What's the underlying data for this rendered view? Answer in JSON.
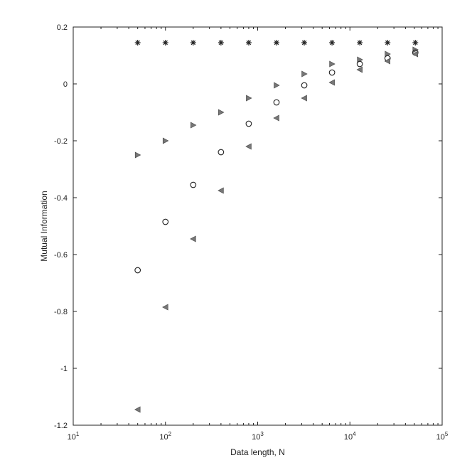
{
  "chart_data": {
    "type": "scatter",
    "xlabel": "Data length, N",
    "ylabel": "Mutual Information",
    "xscale": "log",
    "xlim": [
      10,
      100000
    ],
    "ylim": [
      -1.2,
      0.2
    ],
    "grid": false,
    "legend": "none",
    "x_ticks": [
      10,
      100,
      1000,
      10000,
      100000
    ],
    "x_tick_labels": [
      {
        "base": "10",
        "exp": "1"
      },
      {
        "base": "10",
        "exp": "2"
      },
      {
        "base": "10",
        "exp": "3"
      },
      {
        "base": "10",
        "exp": "4"
      },
      {
        "base": "10",
        "exp": "5"
      }
    ],
    "y_ticks": [
      0.2,
      0,
      -0.2,
      -0.4,
      -0.6,
      -0.8,
      -1,
      -1.2
    ],
    "y_tick_labels": [
      "0.2",
      "0",
      "-0.2",
      "-0.4",
      "-0.6",
      "-0.8",
      "-1",
      "-1.2"
    ],
    "series": [
      {
        "marker": "asterisk",
        "color": "#222222",
        "points": [
          [
            50,
            0.145
          ],
          [
            100,
            0.145
          ],
          [
            200,
            0.145
          ],
          [
            400,
            0.145
          ],
          [
            800,
            0.145
          ],
          [
            1600,
            0.145
          ],
          [
            3200,
            0.145
          ],
          [
            6400,
            0.145
          ],
          [
            12800,
            0.145
          ],
          [
            25600,
            0.145
          ],
          [
            51200,
            0.145
          ]
        ]
      },
      {
        "marker": "triangle-right",
        "color": "#777777",
        "points": [
          [
            50,
            -0.25
          ],
          [
            100,
            -0.2
          ],
          [
            200,
            -0.145
          ],
          [
            400,
            -0.1
          ],
          [
            800,
            -0.05
          ],
          [
            1600,
            -0.005
          ],
          [
            3200,
            0.035
          ],
          [
            6400,
            0.07
          ],
          [
            12800,
            0.085
          ],
          [
            25600,
            0.105
          ],
          [
            51200,
            0.12
          ]
        ]
      },
      {
        "marker": "circle",
        "color": "#222222",
        "points": [
          [
            50,
            -0.655
          ],
          [
            100,
            -0.485
          ],
          [
            200,
            -0.355
          ],
          [
            400,
            -0.24
          ],
          [
            800,
            -0.14
          ],
          [
            1600,
            -0.065
          ],
          [
            3200,
            -0.005
          ],
          [
            6400,
            0.04
          ],
          [
            12800,
            0.07
          ],
          [
            25600,
            0.09
          ],
          [
            51200,
            0.11
          ]
        ]
      },
      {
        "marker": "triangle-left",
        "color": "#777777",
        "points": [
          [
            50,
            -1.145
          ],
          [
            100,
            -0.785
          ],
          [
            200,
            -0.545
          ],
          [
            400,
            -0.375
          ],
          [
            800,
            -0.22
          ],
          [
            1600,
            -0.12
          ],
          [
            3200,
            -0.05
          ],
          [
            6400,
            0.005
          ],
          [
            12800,
            0.05
          ],
          [
            25600,
            0.08
          ],
          [
            51200,
            0.105
          ]
        ]
      }
    ]
  }
}
